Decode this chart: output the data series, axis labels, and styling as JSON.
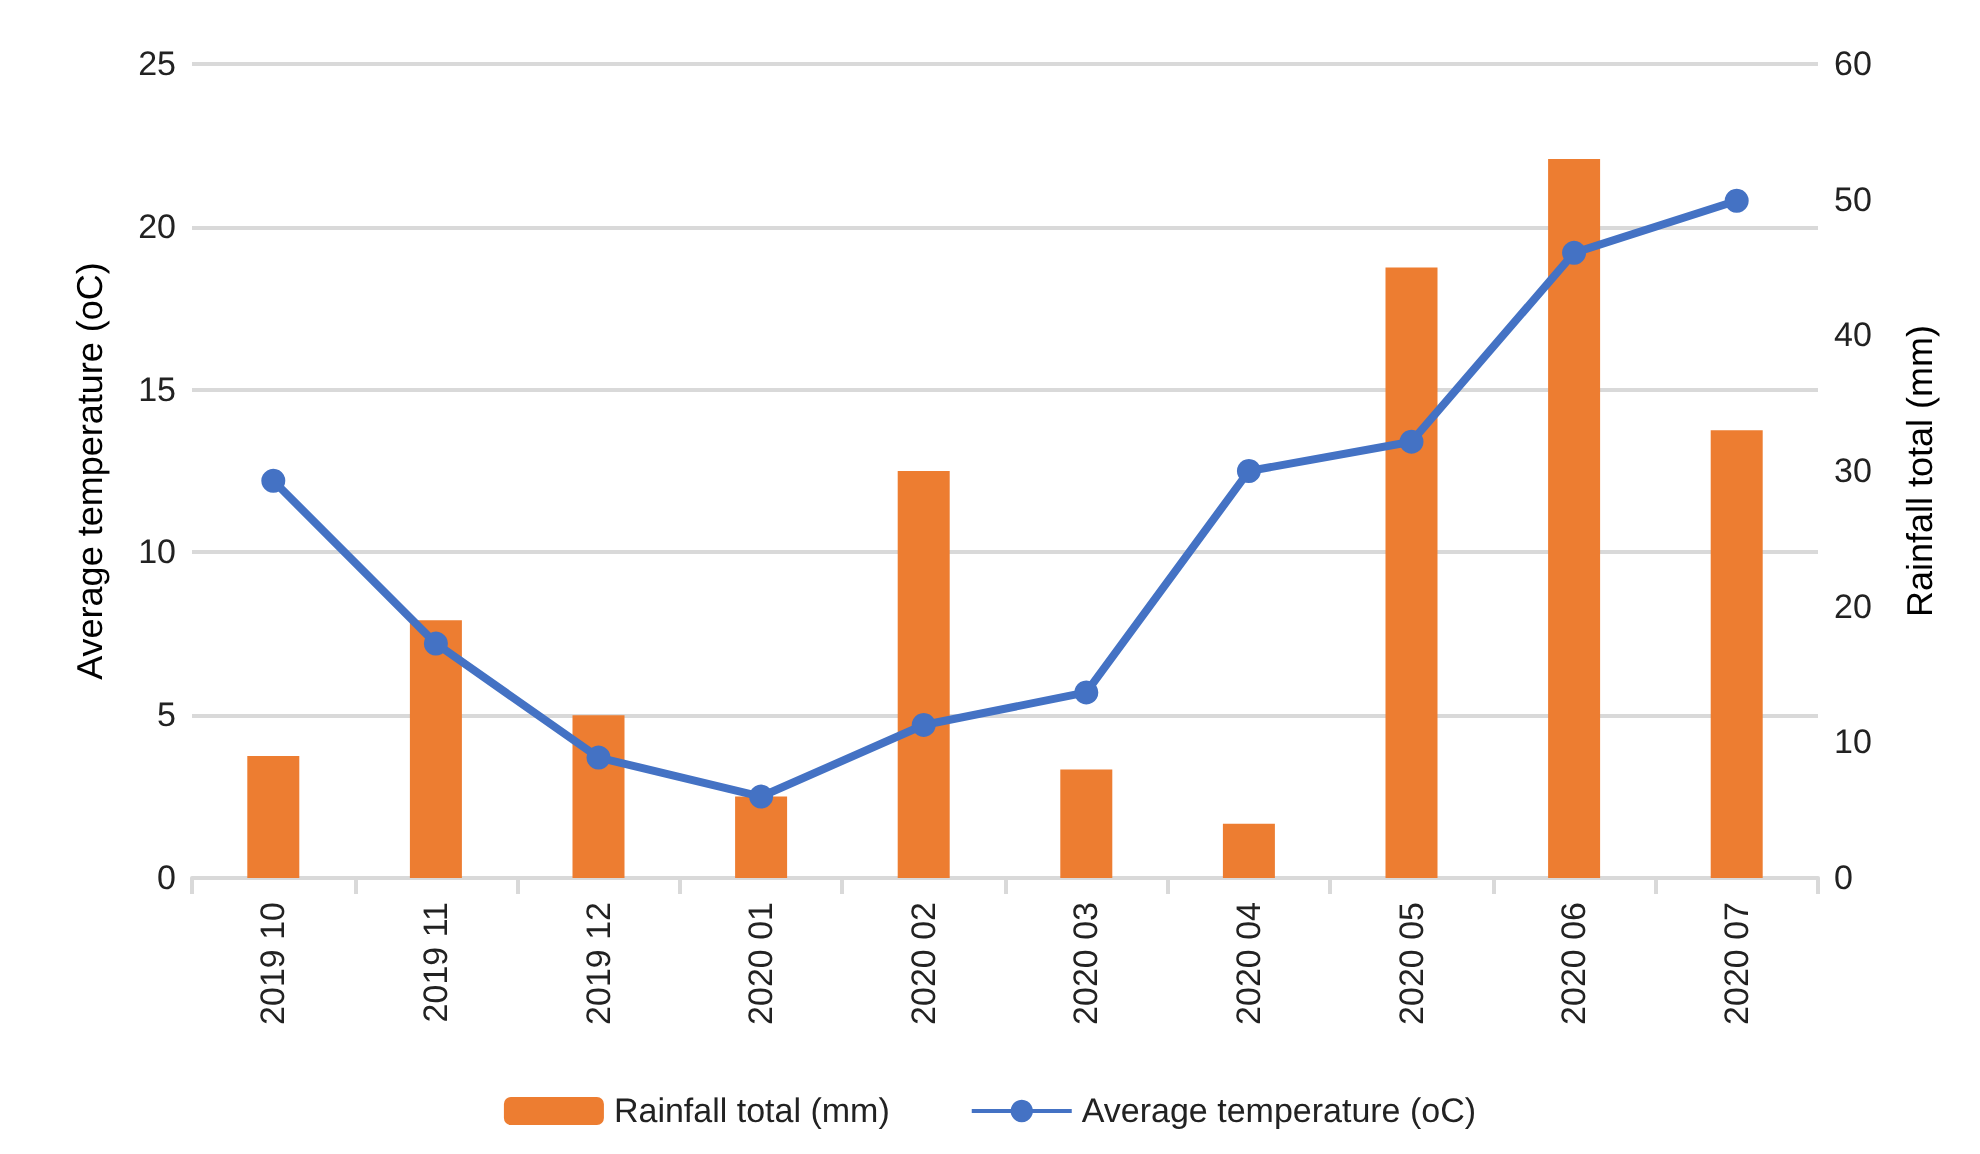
{
  "chart_data": {
    "type": "bar",
    "categories": [
      "2019 10",
      "2019 11",
      "2019 12",
      "2020 01",
      "2020 02",
      "2020 03",
      "2020 04",
      "2020 05",
      "2020 06",
      "2020 07"
    ],
    "series": [
      {
        "name": "Rainfall total (mm)",
        "axis": "y2",
        "color": "#ed7d31",
        "values": [
          9,
          19,
          12,
          6,
          30,
          8,
          4,
          45,
          53,
          33
        ]
      },
      {
        "name": "Average temperature (oC)",
        "type": "line",
        "color": "#4472c4",
        "marker": "circle",
        "values": [
          12.2,
          7.2,
          3.7,
          2.5,
          4.7,
          5.7,
          12.5,
          13.4,
          19.2,
          20.8
        ]
      }
    ],
    "ylabel": "Average temperature (oC)",
    "y2label": "Rainfall total (mm)",
    "ylim": [
      0,
      25
    ],
    "yticks": [
      0,
      5,
      10,
      15,
      20,
      25
    ],
    "y2lim": [
      0,
      60
    ],
    "y2ticks": [
      0,
      10,
      20,
      30,
      40,
      50,
      60
    ],
    "grid": "y",
    "legend": "bottom"
  }
}
